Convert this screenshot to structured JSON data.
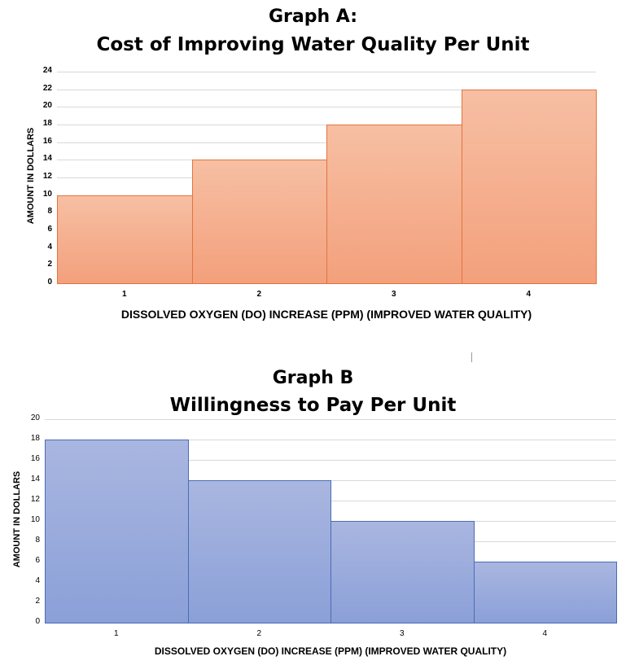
{
  "chart_data": [
    {
      "type": "bar",
      "title": "Graph A:",
      "subtitle": "Cost of Improving Water Quality Per Unit",
      "xlabel": "DISSOLVED OXYGEN (DO) INCREASE (PPM) (IMPROVED WATER QUALITY)",
      "ylabel": "AMOUNT IN DOLLARS",
      "categories": [
        "1",
        "2",
        "3",
        "4"
      ],
      "values": [
        10,
        14,
        18,
        22
      ],
      "ylim": [
        0,
        24
      ],
      "yticks": [
        0,
        2,
        4,
        6,
        8,
        10,
        12,
        14,
        16,
        18,
        20,
        22,
        24
      ],
      "grid": true,
      "color": "#f4a582"
    },
    {
      "type": "bar",
      "title": "Graph B",
      "subtitle": "Willingness to Pay Per Unit",
      "xlabel": "DISSOLVED OXYGEN (DO) INCREASE (PPM) (IMPROVED WATER QUALITY)",
      "ylabel": "AMOUNT IN DOLLARS",
      "categories": [
        "1",
        "2",
        "3",
        "4"
      ],
      "values": [
        18,
        14,
        10,
        6
      ],
      "ylim": [
        0,
        20
      ],
      "yticks": [
        0,
        2,
        4,
        6,
        8,
        10,
        12,
        14,
        16,
        18,
        20
      ],
      "grid": true,
      "color": "#8fa3d9"
    }
  ]
}
